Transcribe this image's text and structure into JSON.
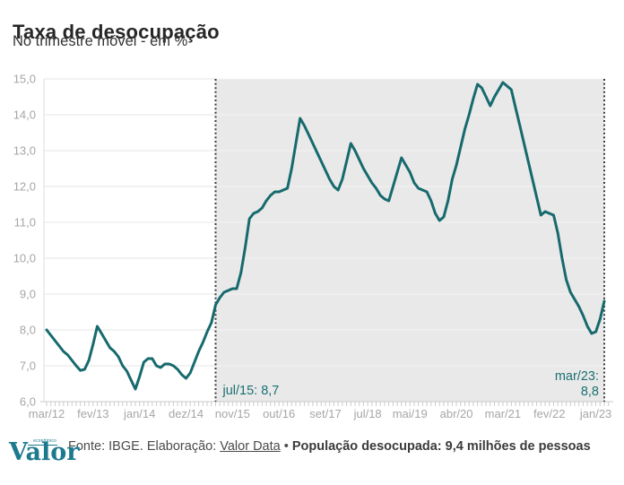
{
  "chart_data": {
    "type": "line",
    "title": "Taxa de desocupação",
    "subtitle": "No trimestre móvel - em %",
    "unit": "%",
    "x_start": "mar/12",
    "x_end": "mar/23",
    "ylim": [
      6.0,
      15.0
    ],
    "grid": "horizontal",
    "y_tick_labels": [
      "15,0",
      "14,0",
      "13,0",
      "12,0",
      "11,0",
      "10,0",
      "9,0",
      "8,0",
      "7,0",
      "6,0"
    ],
    "x_tick_labels": [
      {
        "label": "mar/12",
        "month_index": 0
      },
      {
        "label": "fev/13",
        "month_index": 11
      },
      {
        "label": "jan/14",
        "month_index": 22
      },
      {
        "label": "dez/14",
        "month_index": 33
      },
      {
        "label": "nov/15",
        "month_index": 44
      },
      {
        "label": "out/16",
        "month_index": 55
      },
      {
        "label": "set/17",
        "month_index": 66
      },
      {
        "label": "jul/18",
        "month_index": 76
      },
      {
        "label": "mai/19",
        "month_index": 86
      },
      {
        "label": "abr/20",
        "month_index": 97
      },
      {
        "label": "mar/21",
        "month_index": 108
      },
      {
        "label": "fev/22",
        "month_index": 119
      },
      {
        "label": "jan/23",
        "month_index": 130
      }
    ],
    "series": [
      {
        "name": "Taxa de desocupação no trimestre móvel (%)",
        "color": "#166a6d",
        "values": [
          8.0,
          7.85,
          7.7,
          7.55,
          7.4,
          7.3,
          7.15,
          7.0,
          6.87,
          6.9,
          7.15,
          7.6,
          8.1,
          7.9,
          7.7,
          7.5,
          7.4,
          7.25,
          7.0,
          6.85,
          6.6,
          6.35,
          6.7,
          7.1,
          7.2,
          7.2,
          7.0,
          6.95,
          7.05,
          7.05,
          7.0,
          6.9,
          6.75,
          6.65,
          6.8,
          7.1,
          7.4,
          7.65,
          7.95,
          8.2,
          8.7,
          8.9,
          9.05,
          9.1,
          9.15,
          9.15,
          9.6,
          10.3,
          11.1,
          11.25,
          11.3,
          11.4,
          11.6,
          11.75,
          11.85,
          11.85,
          11.9,
          11.95,
          12.5,
          13.2,
          13.9,
          13.7,
          13.45,
          13.2,
          12.95,
          12.7,
          12.45,
          12.2,
          12.0,
          11.9,
          12.2,
          12.7,
          13.2,
          13.0,
          12.75,
          12.5,
          12.3,
          12.1,
          11.95,
          11.75,
          11.65,
          11.6,
          12.0,
          12.4,
          12.8,
          12.6,
          12.4,
          12.1,
          11.95,
          11.9,
          11.85,
          11.6,
          11.25,
          11.05,
          11.15,
          11.6,
          12.2,
          12.6,
          13.1,
          13.6,
          14.0,
          14.45,
          14.85,
          14.75,
          14.5,
          14.25,
          14.5,
          14.7,
          14.9,
          14.8,
          14.7,
          14.2,
          13.7,
          13.2,
          12.7,
          12.2,
          11.7,
          11.2,
          11.3,
          11.25,
          11.2,
          10.7,
          10.0,
          9.4,
          9.05,
          8.85,
          8.65,
          8.4,
          8.1,
          7.9,
          7.95,
          8.3,
          8.8
        ]
      }
    ],
    "highlight_region": {
      "from_month_index": 40,
      "to_month_index": 132,
      "fill": "#e9e9e9"
    },
    "annotations": [
      {
        "text": "jul/15: 8,7",
        "month_index": 40,
        "value": 8.7,
        "align": "left"
      },
      {
        "text": "mar/23:",
        "text2": "8,8",
        "month_index": 132,
        "value": 8.8,
        "align": "right"
      }
    ],
    "colors": {
      "line": "#166a6d",
      "annotation": "#1b7072",
      "shade": "#e9e9e9",
      "grid_on_white": "#e4e4e4",
      "grid_on_shade": "#f4f4f4",
      "axis": "#c9c9c9",
      "axis_text": "#a6a6a6",
      "dotted_line": "#3c3c3c"
    }
  },
  "footer": {
    "logo_text": "Valor",
    "logo_small": "econômico",
    "source_prefix": "Fonte: IBGE. Elaboração: ",
    "source_link": "Valor Data",
    "bullet": " • ",
    "highlight": "População desocupada: 9,4 milhões de pessoas"
  }
}
